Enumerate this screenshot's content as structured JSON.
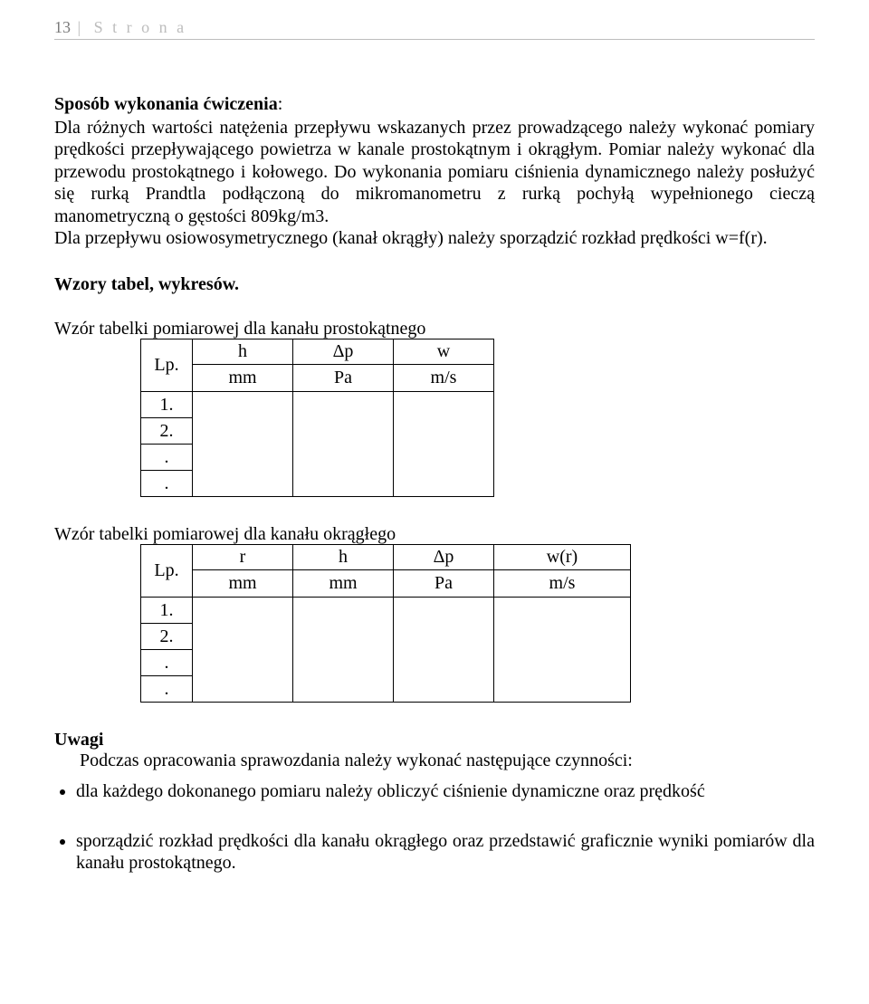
{
  "header": {
    "page_number": "13",
    "separator": "|",
    "word": "S t r o n a"
  },
  "method": {
    "title": "Sposób wykonania ćwiczenia",
    "colon": ":",
    "body": "Dla różnych wartości natężenia przepływu wskazanych przez prowadzącego należy wykonać pomiary  prędkości przepływającego powietrza w kanale prostokątnym i okrągłym.  Pomiar należy wykonać  dla przewodu prostokątnego i kołowego. Do wykonania pomiaru ciśnienia dynamicznego należy posłużyć się rurką Prandtla podłączoną do mikromanometru z rurką pochyłą wypełnionego cieczą manometryczną o gęstości 809kg/m3.",
    "body2": "Dla przepływu osiowosymetrycznego (kanał okrągły) należy sporządzić rozkład prędkości w=f(r)."
  },
  "tables_section_title": "Wzory tabel, wykresów.",
  "table1": {
    "caption": "Wzór tabelki pomiarowej dla kanału prostokątnego",
    "lp_label": "Lp.",
    "cols": [
      {
        "sym": "h",
        "unit": "mm"
      },
      {
        "sym": "Δp",
        "unit": "Pa"
      },
      {
        "sym": "w",
        "unit": "m/s"
      }
    ],
    "rows": [
      "1.",
      "2.",
      ".",
      "."
    ]
  },
  "table2": {
    "caption": "Wzór tabelki pomiarowej dla kanału okrągłego",
    "lp_label": "Lp.",
    "cols": [
      {
        "sym": "r",
        "unit": "mm"
      },
      {
        "sym": "h",
        "unit": "mm"
      },
      {
        "sym": "Δp",
        "unit": "Pa"
      },
      {
        "sym": "w(r)",
        "unit": "m/s"
      }
    ],
    "rows": [
      "1.",
      "2.",
      ".",
      "."
    ]
  },
  "uwagi": {
    "title": "Uwagi",
    "intro": "Podczas opracowania sprawozdania należy wykonać następujące czynności:",
    "items": [
      "dla każdego dokonanego pomiaru należy obliczyć ciśnienie dynamiczne oraz prędkość",
      "sporządzić rozkład prędkości dla kanału okrągłego oraz przedstawić graficznie wyniki pomiarów dla kanału prostokątnego."
    ]
  }
}
